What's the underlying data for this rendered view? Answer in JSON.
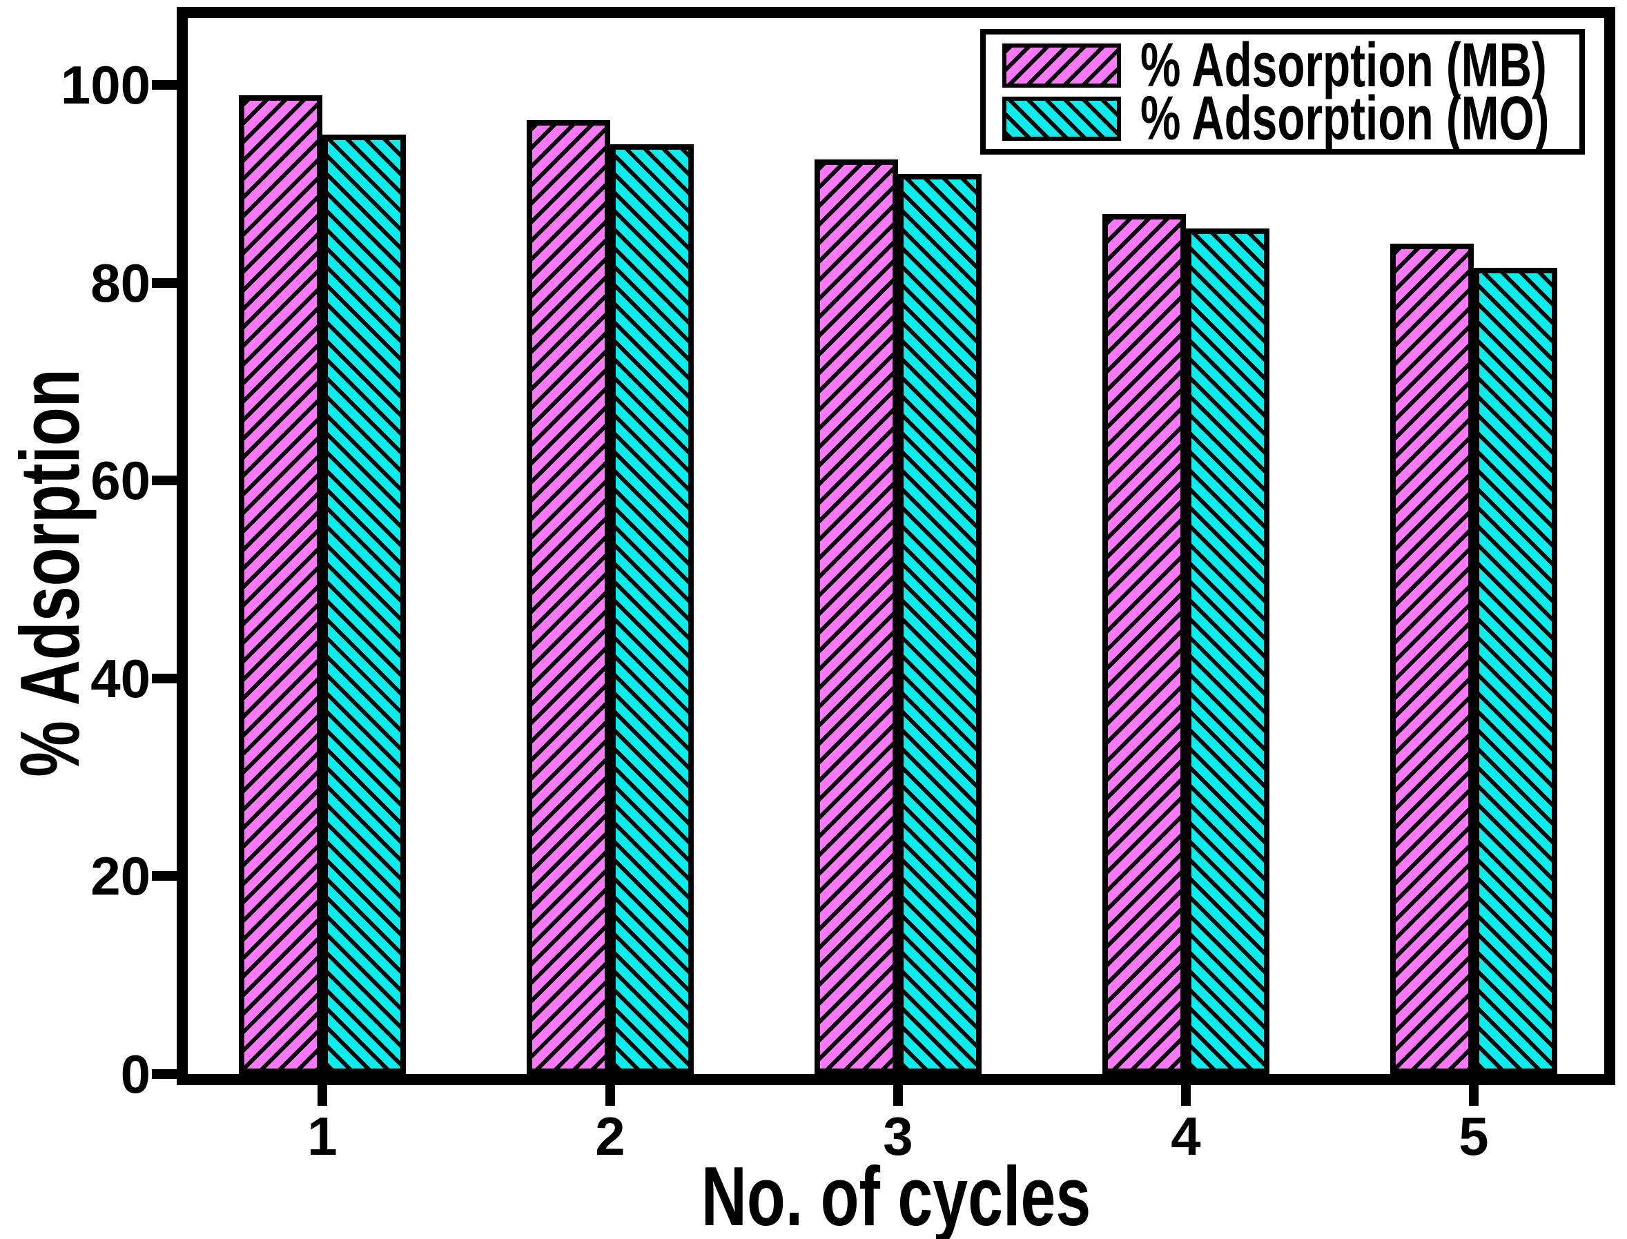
{
  "chart_data": {
    "type": "bar",
    "title": "",
    "xlabel": "No. of cycles",
    "ylabel": "% Adsorption",
    "categories": [
      "1",
      "2",
      "3",
      "4",
      "5"
    ],
    "series": [
      {
        "name": "% Adsorption (MB)",
        "color": "#FA78FA",
        "hatch": "/",
        "values": [
          99,
          96.5,
          92.5,
          87,
          84
        ]
      },
      {
        "name": "% Adsorption (MO)",
        "color": "#0AEDED",
        "hatch": "\\",
        "values": [
          95,
          94,
          91,
          85.5,
          81.5
        ]
      }
    ],
    "yticks": [
      0,
      20,
      40,
      60,
      80,
      100
    ],
    "ylim": [
      0,
      106.8
    ],
    "grid": false,
    "legend_position": "top-right",
    "bar_outline_color": "#000000",
    "hatch_color": "#000000"
  }
}
